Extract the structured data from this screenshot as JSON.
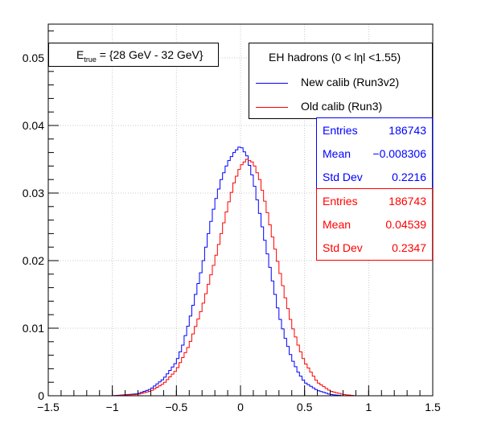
{
  "colors": {
    "new": "#0000ff",
    "old": "#ff0000"
  },
  "title_box": {
    "prefix": "E",
    "sub": "true",
    "rest": " =  {28 GeV - 32 GeV}"
  },
  "legend": {
    "header": "EH hadrons (0 < lηl <1.55)",
    "entries": [
      "New calib (Run3v2)",
      "Old calib (Run3)"
    ]
  },
  "stats": [
    {
      "color": "#0000ff",
      "rows": [
        {
          "k": "Entries",
          "v": "186743"
        },
        {
          "k": "Mean",
          "v": "−0.008306"
        },
        {
          "k": "Std Dev",
          "v": "0.2216"
        }
      ]
    },
    {
      "color": "#ff0000",
      "rows": [
        {
          "k": "Entries",
          "v": "186743"
        },
        {
          "k": "Mean",
          "v": "0.04539"
        },
        {
          "k": "Std Dev",
          "v": "0.2347"
        }
      ]
    }
  ],
  "chart_data": {
    "type": "line",
    "style": "step histogram",
    "xlim": [
      -1.5,
      1.5
    ],
    "ylim": [
      0,
      0.055
    ],
    "xticks": [
      "−1.5",
      "−1",
      "−0.5",
      "0",
      "0.5",
      "1",
      "1.5"
    ],
    "yticks": [
      "0",
      "0.01",
      "0.02",
      "0.03",
      "0.04",
      "0.05"
    ],
    "grid": true,
    "series": [
      {
        "name": "New calib (Run3v2)",
        "color": "#0000ff",
        "points": [
          [
            -1.0,
            0.0
          ],
          [
            -0.8,
            0.0003
          ],
          [
            -0.7,
            0.001
          ],
          [
            -0.6,
            0.0025
          ],
          [
            -0.5,
            0.005
          ],
          [
            -0.45,
            0.0075
          ],
          [
            -0.4,
            0.011
          ],
          [
            -0.35,
            0.015
          ],
          [
            -0.3,
            0.019
          ],
          [
            -0.25,
            0.024
          ],
          [
            -0.2,
            0.0285
          ],
          [
            -0.15,
            0.032
          ],
          [
            -0.1,
            0.0345
          ],
          [
            -0.05,
            0.036
          ],
          [
            0.0,
            0.037
          ],
          [
            0.05,
            0.0355
          ],
          [
            0.1,
            0.032
          ],
          [
            0.15,
            0.027
          ],
          [
            0.2,
            0.022
          ],
          [
            0.25,
            0.017
          ],
          [
            0.3,
            0.012
          ],
          [
            0.35,
            0.0085
          ],
          [
            0.4,
            0.0055
          ],
          [
            0.45,
            0.0035
          ],
          [
            0.5,
            0.002
          ],
          [
            0.6,
            0.0008
          ],
          [
            0.7,
            0.0002
          ],
          [
            0.8,
            0.0
          ]
        ]
      },
      {
        "name": "Old calib (Run3)",
        "color": "#ff0000",
        "points": [
          [
            -1.0,
            0.0
          ],
          [
            -0.8,
            0.0002
          ],
          [
            -0.7,
            0.0007
          ],
          [
            -0.6,
            0.0018
          ],
          [
            -0.5,
            0.0038
          ],
          [
            -0.4,
            0.0075
          ],
          [
            -0.3,
            0.013
          ],
          [
            -0.2,
            0.02
          ],
          [
            -0.15,
            0.024
          ],
          [
            -0.1,
            0.028
          ],
          [
            -0.05,
            0.0315
          ],
          [
            0.0,
            0.034
          ],
          [
            0.05,
            0.035
          ],
          [
            0.1,
            0.0345
          ],
          [
            0.15,
            0.032
          ],
          [
            0.2,
            0.028
          ],
          [
            0.25,
            0.0235
          ],
          [
            0.3,
            0.019
          ],
          [
            0.35,
            0.0145
          ],
          [
            0.4,
            0.0105
          ],
          [
            0.45,
            0.0075
          ],
          [
            0.5,
            0.005
          ],
          [
            0.6,
            0.002
          ],
          [
            0.7,
            0.0007
          ],
          [
            0.8,
            0.0002
          ],
          [
            0.9,
            0.0
          ]
        ]
      }
    ]
  }
}
